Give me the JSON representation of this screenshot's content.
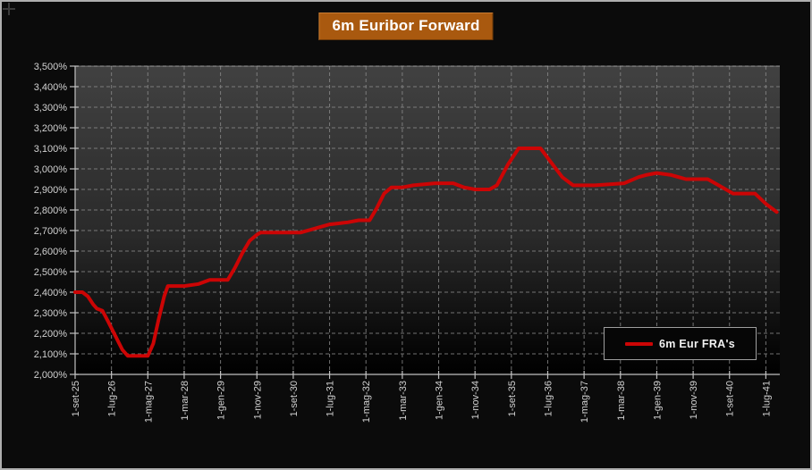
{
  "title": "6m Euribor Forward",
  "legend": {
    "label": "6m Eur FRA's"
  },
  "colors": {
    "line": "#cc0505",
    "title_bg": "#a9590f",
    "axis": "#c0c0c0",
    "grid": "#8c8c8c",
    "tick_label": "#d2d2d2",
    "plot_top": "#414141",
    "plot_mid": "#2a2a2a",
    "plot_bottom": "#000000"
  },
  "chart_data": {
    "type": "line",
    "title": "6m Euribor Forward",
    "legend_entries": [
      "6m Eur FRA's"
    ],
    "grid": "dashed",
    "ylim": [
      2.0,
      3.5
    ],
    "y_tick_step": 0.1,
    "y_tick_labels": [
      "2,000%",
      "2,100%",
      "2,200%",
      "2,300%",
      "2,400%",
      "2,500%",
      "2,600%",
      "2,700%",
      "2,800%",
      "2,900%",
      "3,000%",
      "3,100%",
      "3,200%",
      "3,300%",
      "3,400%",
      "3,500%"
    ],
    "x_tick_labels": [
      "1-set-25",
      "1-lug-26",
      "1-mag-27",
      "1-mar-28",
      "1-gen-29",
      "1-nov-29",
      "1-set-30",
      "1-lug-31",
      "1-mag-32",
      "1-mar-33",
      "1-gen-34",
      "1-nov-34",
      "1-set-35",
      "1-lug-36",
      "1-mag-37",
      "1-mar-38",
      "1-gen-39",
      "1-nov-39",
      "1-set-40",
      "1-lug-41"
    ],
    "x_months_per_tick": 10,
    "series": [
      {
        "name": "6m Eur FRA's",
        "color": "#cc0505",
        "points_t_months_value_pct": [
          [
            0,
            2.4
          ],
          [
            2,
            2.4
          ],
          [
            3.5,
            2.38
          ],
          [
            5,
            2.34
          ],
          [
            6,
            2.32
          ],
          [
            7.5,
            2.31
          ],
          [
            9,
            2.26
          ],
          [
            11,
            2.19
          ],
          [
            13,
            2.12
          ],
          [
            14.5,
            2.09
          ],
          [
            20,
            2.09
          ],
          [
            21.5,
            2.15
          ],
          [
            23,
            2.27
          ],
          [
            24.5,
            2.38
          ],
          [
            25.5,
            2.43
          ],
          [
            30,
            2.43
          ],
          [
            34,
            2.44
          ],
          [
            37,
            2.46
          ],
          [
            42,
            2.46
          ],
          [
            44,
            2.52
          ],
          [
            46,
            2.59
          ],
          [
            48,
            2.65
          ],
          [
            50,
            2.68
          ],
          [
            51,
            2.69
          ],
          [
            62,
            2.69
          ],
          [
            66,
            2.71
          ],
          [
            70,
            2.73
          ],
          [
            75,
            2.74
          ],
          [
            78,
            2.75
          ],
          [
            81,
            2.75
          ],
          [
            83,
            2.81
          ],
          [
            85,
            2.88
          ],
          [
            87,
            2.91
          ],
          [
            90,
            2.91
          ],
          [
            93,
            2.92
          ],
          [
            99,
            2.93
          ],
          [
            104,
            2.93
          ],
          [
            107,
            2.91
          ],
          [
            110,
            2.9
          ],
          [
            114,
            2.9
          ],
          [
            116,
            2.92
          ],
          [
            119,
            3.02
          ],
          [
            122,
            3.1
          ],
          [
            128,
            3.1
          ],
          [
            131,
            3.03
          ],
          [
            134,
            2.96
          ],
          [
            137,
            2.92
          ],
          [
            143,
            2.92
          ],
          [
            151,
            2.93
          ],
          [
            155,
            2.96
          ],
          [
            157,
            2.97
          ],
          [
            160,
            2.98
          ],
          [
            164,
            2.97
          ],
          [
            168,
            2.95
          ],
          [
            174,
            2.95
          ],
          [
            177,
            2.92
          ],
          [
            180,
            2.89
          ],
          [
            181,
            2.88
          ],
          [
            187,
            2.88
          ],
          [
            190,
            2.83
          ],
          [
            193,
            2.79
          ]
        ]
      }
    ]
  }
}
